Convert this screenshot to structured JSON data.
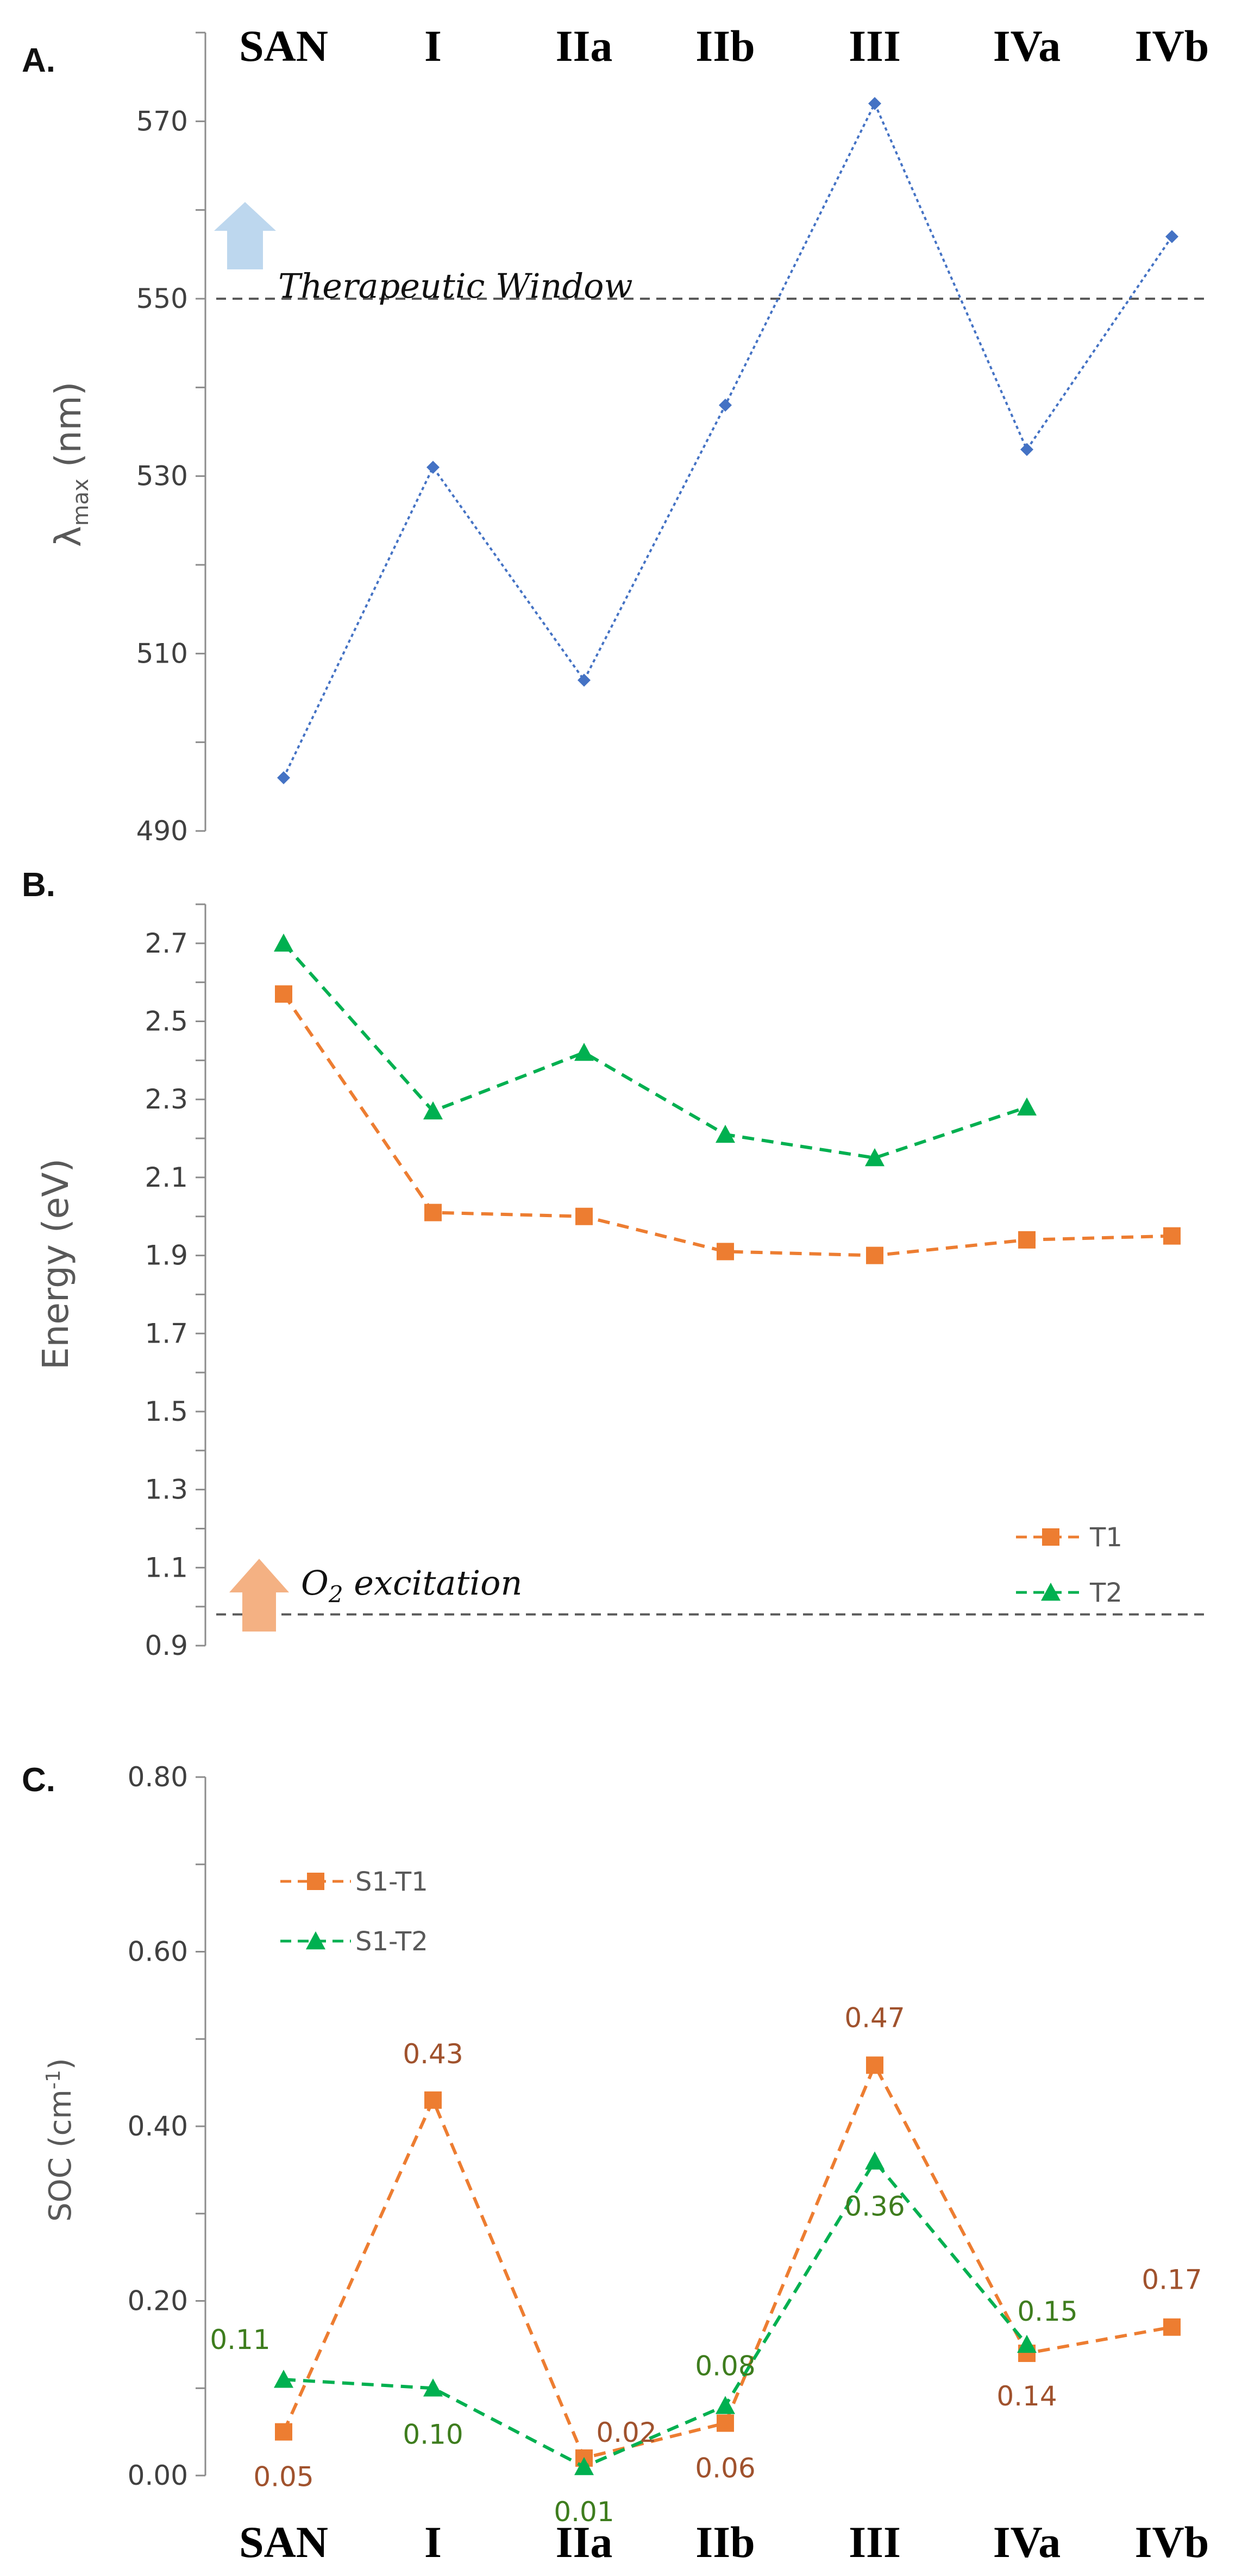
{
  "chart_data": [
    {
      "panel": "A.",
      "type": "line",
      "categories": [
        "SAN",
        "I",
        "IIa",
        "IIb",
        "III",
        "IVa",
        "IVb"
      ],
      "ylabel_main": "λ",
      "ylabel_sub": "max",
      "ylabel_unit": " (nm)",
      "ylim": [
        490,
        580
      ],
      "yticks": [
        "490",
        "510",
        "530",
        "550",
        "570"
      ],
      "series": [
        {
          "name": "λmax",
          "color": "#4472c4",
          "values": [
            496,
            531,
            507,
            538,
            572,
            533,
            557
          ]
        }
      ],
      "reference_line": {
        "value": 550
      },
      "annotation": "Therapeutic Window",
      "arrow_color": "#bdd7ee"
    },
    {
      "panel": "B.",
      "type": "line",
      "categories": [
        "SAN",
        "I",
        "IIa",
        "IIb",
        "III",
        "IVa",
        "IVb"
      ],
      "ylabel": "Energy (eV)",
      "ylim": [
        0.9,
        2.8
      ],
      "yticks": [
        "0.9",
        "1.1",
        "1.3",
        "1.5",
        "1.7",
        "1.9",
        "2.1",
        "2.3",
        "2.5",
        "2.7"
      ],
      "series": [
        {
          "name": "T1",
          "color": "#ed7d31",
          "marker": "square",
          "values": [
            2.57,
            2.01,
            2.0,
            1.91,
            1.9,
            1.94,
            1.95
          ]
        },
        {
          "name": "T2",
          "color": "#00b050",
          "marker": "triangle",
          "values": [
            2.7,
            2.27,
            2.42,
            2.21,
            2.15,
            2.28,
            null
          ]
        }
      ],
      "reference_line": {
        "value": 0.98
      },
      "annotation_main": "O",
      "annotation_sub": "2",
      "annotation_rest": " excitation",
      "arrow_color": "#f4b183",
      "legend": [
        "T1",
        "T2"
      ]
    },
    {
      "panel": "C.",
      "type": "line",
      "categories": [
        "SAN",
        "I",
        "IIa",
        "IIb",
        "III",
        "IVa",
        "IVb"
      ],
      "ylabel_main": "SOC (cm",
      "ylabel_sup": "-1",
      "ylabel_end": ")",
      "ylim": [
        0,
        0.8
      ],
      "yticks": [
        "0.00",
        "0.20",
        "0.40",
        "0.60",
        "0.80"
      ],
      "series": [
        {
          "name": "S1-T1",
          "color": "#ed7d31",
          "marker": "square",
          "values": [
            0.05,
            0.43,
            0.02,
            0.06,
            0.47,
            0.14,
            0.17
          ],
          "labels": [
            "0.05",
            "0.43",
            "0.02",
            "0.06",
            "0.47",
            "0.14",
            "0.17"
          ]
        },
        {
          "name": "S1-T2",
          "color": "#00b050",
          "marker": "triangle",
          "values": [
            0.11,
            0.1,
            0.01,
            0.08,
            0.36,
            0.15,
            null
          ],
          "labels": [
            "0.11",
            "0.10",
            "0.01",
            "0.08",
            "0.36",
            "0.15",
            ""
          ]
        }
      ],
      "legend": [
        "S1-T1",
        "S1-T2"
      ]
    }
  ]
}
